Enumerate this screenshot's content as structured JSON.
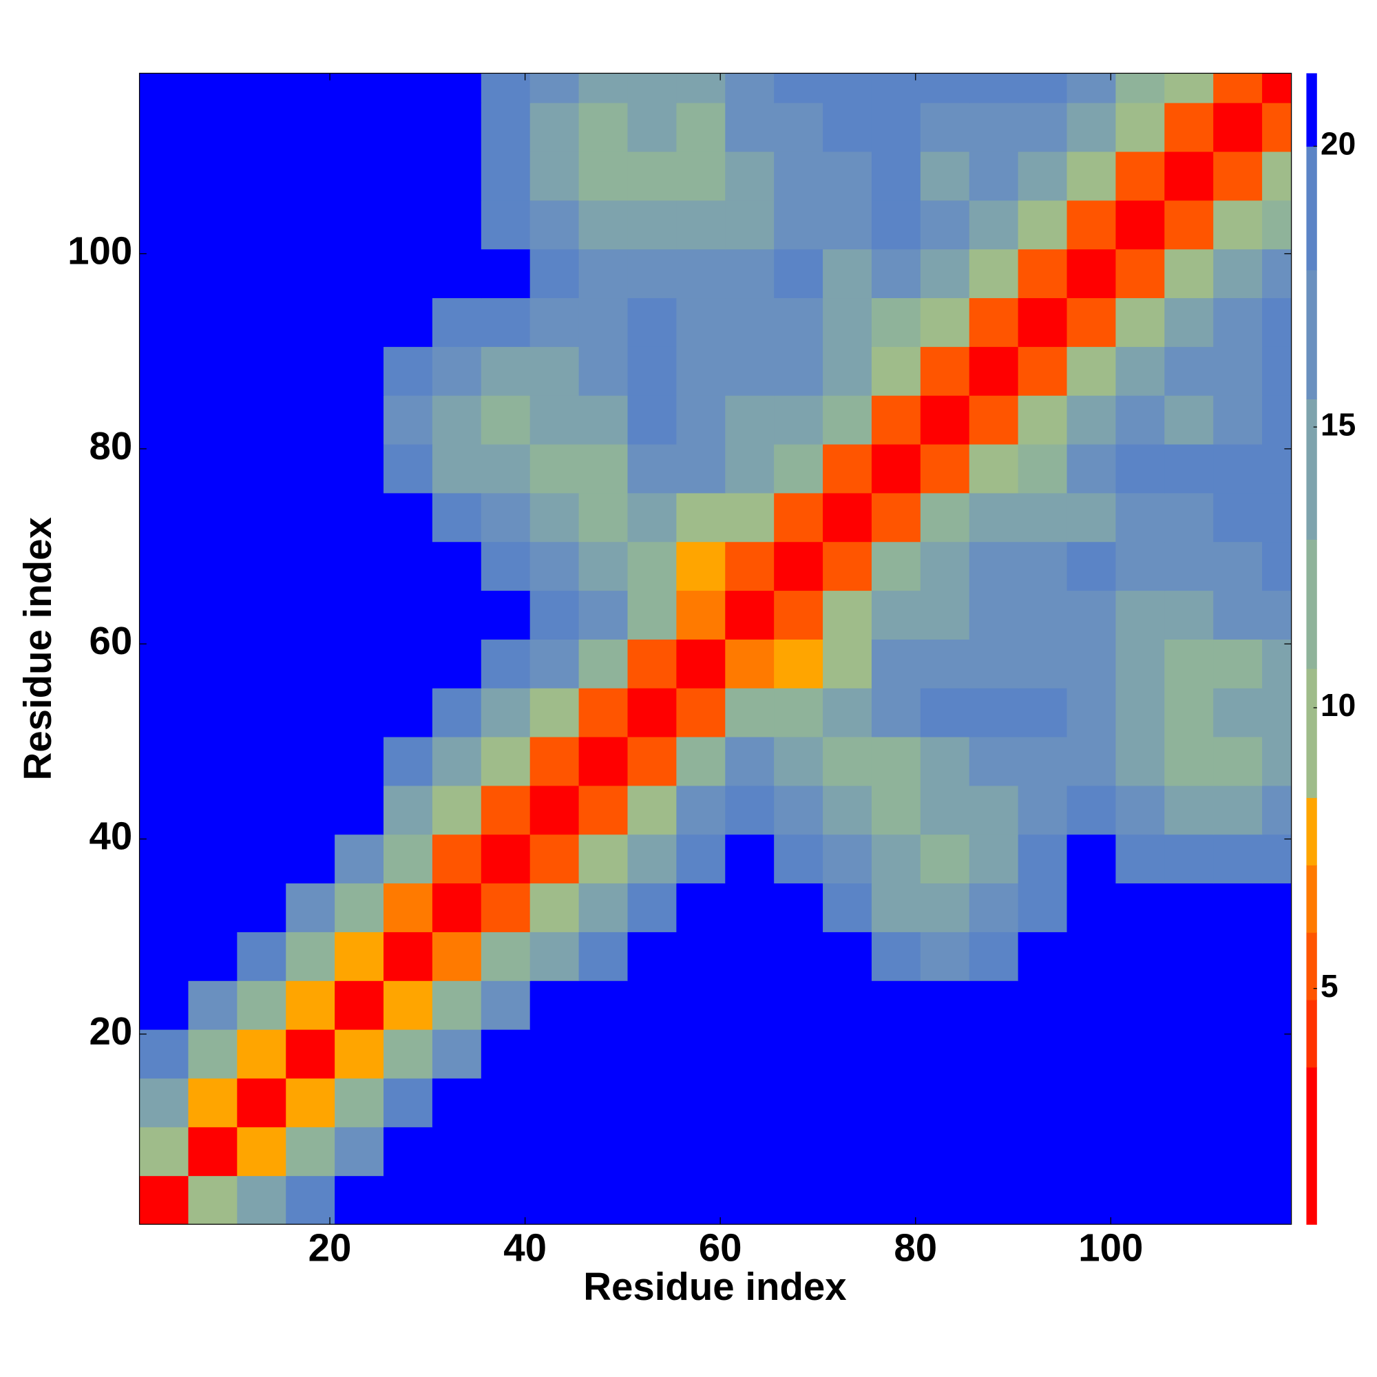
{
  "chart_data": {
    "type": "heatmap",
    "x_label": "Residue index",
    "y_label": "Residue index",
    "xlim": [
      0.5,
      118.5
    ],
    "ylim": [
      0.5,
      118.5
    ],
    "xticks": [
      20,
      40,
      60,
      80,
      100
    ],
    "yticks": [
      20,
      40,
      60,
      80,
      100
    ],
    "x": [
      3,
      8,
      13,
      18,
      23,
      28,
      33,
      38,
      43,
      48,
      53,
      58,
      63,
      68,
      73,
      78,
      83,
      88,
      93,
      98,
      103,
      108,
      113,
      118
    ],
    "y": [
      3,
      8,
      13,
      18,
      23,
      28,
      33,
      38,
      43,
      48,
      53,
      58,
      63,
      68,
      73,
      78,
      83,
      88,
      93,
      98,
      103,
      108,
      113,
      118
    ],
    "z": [
      [
        3,
        9,
        14,
        18,
        21,
        21,
        21,
        21,
        21,
        21,
        21,
        21,
        21,
        21,
        21,
        21,
        21,
        21,
        21,
        21,
        21,
        21,
        21,
        21
      ],
      [
        9,
        3,
        8,
        12,
        17,
        21,
        21,
        21,
        21,
        21,
        21,
        21,
        21,
        21,
        21,
        21,
        21,
        21,
        21,
        21,
        21,
        21,
        21,
        21
      ],
      [
        14,
        8,
        3,
        8,
        12,
        18,
        21,
        21,
        21,
        21,
        21,
        21,
        21,
        21,
        21,
        21,
        21,
        21,
        21,
        21,
        21,
        21,
        21,
        21
      ],
      [
        18,
        12,
        8,
        3,
        8,
        12,
        16,
        21,
        21,
        21,
        21,
        21,
        21,
        21,
        21,
        21,
        21,
        21,
        21,
        21,
        21,
        21,
        21,
        21
      ],
      [
        21,
        17,
        12,
        8,
        3,
        8,
        12,
        16,
        21,
        21,
        21,
        21,
        21,
        21,
        21,
        21,
        21,
        21,
        21,
        21,
        21,
        21,
        21,
        21
      ],
      [
        21,
        21,
        18,
        12,
        8,
        3,
        7,
        11,
        15,
        18,
        21,
        21,
        21,
        21,
        21,
        18,
        17,
        18,
        21,
        21,
        21,
        21,
        21,
        21
      ],
      [
        21,
        21,
        21,
        16,
        12,
        7,
        3,
        6,
        10,
        14,
        18,
        21,
        21,
        21,
        18,
        15,
        14,
        16,
        18,
        21,
        21,
        21,
        21,
        21
      ],
      [
        21,
        21,
        21,
        21,
        16,
        11,
        6,
        3,
        6,
        10,
        15,
        19,
        21,
        20,
        17,
        15,
        13,
        15,
        18,
        21,
        19,
        18,
        18,
        20
      ],
      [
        21,
        21,
        21,
        21,
        21,
        15,
        10,
        6,
        3,
        6,
        10,
        16,
        18,
        16,
        14,
        13,
        14,
        14,
        16,
        19,
        17,
        15,
        15,
        16
      ],
      [
        21,
        21,
        21,
        21,
        21,
        18,
        14,
        10,
        6,
        3,
        6,
        11,
        16,
        14,
        13,
        13,
        15,
        16,
        17,
        17,
        15,
        13,
        13,
        14
      ],
      [
        21,
        21,
        21,
        21,
        21,
        21,
        18,
        15,
        10,
        6,
        3,
        6,
        11,
        12,
        15,
        17,
        18,
        18,
        18,
        16,
        15,
        13,
        14,
        14
      ],
      [
        21,
        21,
        21,
        21,
        21,
        21,
        21,
        19,
        16,
        11,
        6,
        3,
        7,
        8,
        10,
        16,
        17,
        16,
        17,
        17,
        14,
        11,
        13,
        15
      ],
      [
        21,
        21,
        21,
        21,
        21,
        21,
        21,
        21,
        18,
        16,
        11,
        7,
        3,
        6,
        10,
        14,
        15,
        16,
        16,
        17,
        15,
        14,
        16,
        16
      ],
      [
        21,
        21,
        21,
        21,
        21,
        21,
        21,
        20,
        16,
        14,
        12,
        8,
        6,
        3,
        6,
        11,
        15,
        16,
        17,
        18,
        17,
        16,
        17,
        18
      ],
      [
        21,
        21,
        21,
        21,
        21,
        21,
        18,
        17,
        14,
        13,
        15,
        10,
        10,
        6,
        3,
        6,
        11,
        14,
        14,
        15,
        16,
        17,
        18,
        18
      ],
      [
        21,
        21,
        21,
        21,
        21,
        18,
        15,
        15,
        13,
        13,
        17,
        16,
        14,
        11,
        6,
        3,
        6,
        9,
        13,
        16,
        18,
        18,
        18,
        19
      ],
      [
        21,
        21,
        21,
        21,
        21,
        17,
        14,
        13,
        14,
        15,
        18,
        17,
        15,
        15,
        11,
        6,
        3,
        6,
        9,
        14,
        16,
        15,
        16,
        18
      ],
      [
        21,
        21,
        21,
        21,
        21,
        18,
        16,
        15,
        14,
        16,
        18,
        16,
        16,
        16,
        14,
        9,
        6,
        3,
        6,
        10,
        14,
        16,
        17,
        18
      ],
      [
        21,
        21,
        21,
        21,
        21,
        21,
        18,
        18,
        16,
        17,
        18,
        17,
        16,
        17,
        14,
        13,
        9,
        6,
        3,
        6,
        10,
        14,
        17,
        18
      ],
      [
        21,
        21,
        21,
        21,
        21,
        21,
        21,
        21,
        19,
        17,
        16,
        17,
        17,
        18,
        15,
        16,
        14,
        10,
        6,
        3,
        6,
        10,
        14,
        17
      ],
      [
        21,
        21,
        21,
        21,
        21,
        21,
        21,
        19,
        17,
        15,
        15,
        14,
        15,
        17,
        16,
        18,
        16,
        14,
        10,
        6,
        3,
        6,
        9,
        13
      ],
      [
        21,
        21,
        21,
        21,
        21,
        21,
        21,
        18,
        15,
        13,
        13,
        11,
        14,
        16,
        17,
        18,
        15,
        16,
        14,
        10,
        6,
        3,
        6,
        9
      ],
      [
        21,
        21,
        21,
        21,
        21,
        21,
        21,
        18,
        15,
        13,
        14,
        13,
        16,
        17,
        18,
        18,
        16,
        17,
        17,
        14,
        9,
        6,
        3,
        6
      ],
      [
        21,
        21,
        21,
        21,
        21,
        21,
        21,
        20,
        16,
        14,
        14,
        15,
        16,
        18,
        18,
        19,
        18,
        18,
        18,
        17,
        13,
        9,
        6,
        3
      ]
    ],
    "zlim": [
      0.8,
      21.3
    ],
    "zticks": [
      5,
      10,
      15,
      20
    ],
    "color_levels": [
      {
        "max": 3.6,
        "color": "#ff0000"
      },
      {
        "max": 4.8,
        "color": "#ff3300"
      },
      {
        "max": 6.0,
        "color": "#ff5500"
      },
      {
        "max": 7.2,
        "color": "#ff7a00"
      },
      {
        "max": 8.4,
        "color": "#ffa500"
      },
      {
        "max": 10.7,
        "color": "#9fbc8a"
      },
      {
        "max": 13.0,
        "color": "#8fb39a"
      },
      {
        "max": 15.5,
        "color": "#7ea3ad"
      },
      {
        "max": 17.8,
        "color": "#6a90bf"
      },
      {
        "max": 20.0,
        "color": "#5b84c6"
      },
      {
        "max": 21.3,
        "color": "#0000ff"
      }
    ]
  }
}
